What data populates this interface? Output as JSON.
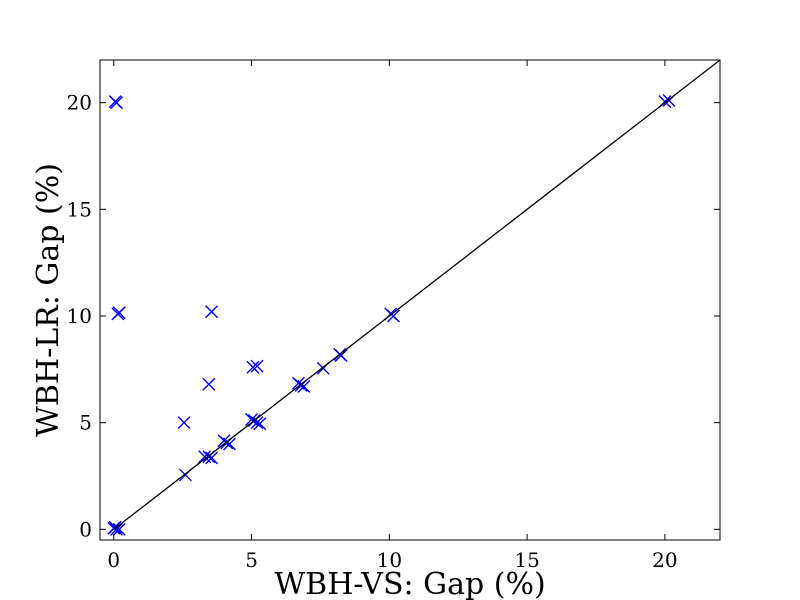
{
  "chart_data": {
    "type": "scatter",
    "xlabel": "WBH-VS: Gap (%)",
    "ylabel": "WBH-LR: Gap (%)",
    "xlim": [
      -0.5,
      22
    ],
    "ylim": [
      -0.5,
      22
    ],
    "xticks": [
      0,
      5,
      10,
      15,
      20
    ],
    "yticks": [
      0,
      5,
      10,
      15,
      20
    ],
    "marker": "x",
    "marker_color": "#0000ff",
    "reference_line": {
      "from": [
        0,
        0
      ],
      "to": [
        22,
        22
      ],
      "color": "#000000"
    },
    "grid": false,
    "points": [
      {
        "x": 0.05,
        "y": 20.05
      },
      {
        "x": 0.1,
        "y": 20.0
      },
      {
        "x": 0.15,
        "y": 10.1
      },
      {
        "x": 0.2,
        "y": 10.15
      },
      {
        "x": 3.55,
        "y": 10.2
      },
      {
        "x": 3.45,
        "y": 6.8
      },
      {
        "x": 2.55,
        "y": 5.0
      },
      {
        "x": 5.05,
        "y": 7.6
      },
      {
        "x": 5.2,
        "y": 7.65
      },
      {
        "x": 0.0,
        "y": 0.05
      },
      {
        "x": 0.05,
        "y": 0.1
      },
      {
        "x": 0.1,
        "y": 0.0
      },
      {
        "x": 0.2,
        "y": 0.0
      },
      {
        "x": 2.6,
        "y": 2.55
      },
      {
        "x": 3.3,
        "y": 3.4
      },
      {
        "x": 3.45,
        "y": 3.4
      },
      {
        "x": 3.55,
        "y": 3.35
      },
      {
        "x": 4.0,
        "y": 4.15
      },
      {
        "x": 4.1,
        "y": 4.05
      },
      {
        "x": 4.2,
        "y": 4.0
      },
      {
        "x": 5.0,
        "y": 5.15
      },
      {
        "x": 5.1,
        "y": 5.1
      },
      {
        "x": 5.2,
        "y": 5.0
      },
      {
        "x": 5.3,
        "y": 4.95
      },
      {
        "x": 6.7,
        "y": 6.85
      },
      {
        "x": 6.8,
        "y": 6.75
      },
      {
        "x": 6.9,
        "y": 6.7
      },
      {
        "x": 7.6,
        "y": 7.55
      },
      {
        "x": 8.2,
        "y": 8.2
      },
      {
        "x": 8.25,
        "y": 8.15
      },
      {
        "x": 10.05,
        "y": 10.1
      },
      {
        "x": 10.15,
        "y": 10.0
      },
      {
        "x": 20.0,
        "y": 20.05
      },
      {
        "x": 20.15,
        "y": 20.1
      }
    ]
  }
}
